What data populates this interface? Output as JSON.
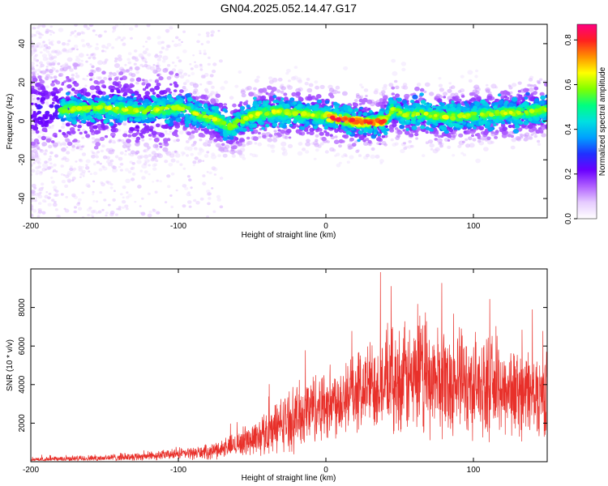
{
  "title": "GN04.2025.052.14.47.G17",
  "colors": {
    "snr_line": "#e8302a",
    "colormap": [
      "#ffffff",
      "#e6ccff",
      "#b060ff",
      "#6a00ff",
      "#2030ff",
      "#00a0ff",
      "#00e0e0",
      "#00ff80",
      "#80ff00",
      "#ffff00",
      "#ff9000",
      "#ff2020",
      "#ff0080"
    ]
  },
  "chart_data": [
    {
      "type": "heatmap",
      "title": "",
      "xlabel": "Height of straight line (km)",
      "ylabel": "Frequency (Hz)",
      "xlim": [
        -200,
        150
      ],
      "ylim": [
        -50,
        50
      ],
      "xticks": [
        -200,
        -100,
        0,
        100
      ],
      "yticks": [
        -40,
        -20,
        0,
        20,
        40
      ],
      "ridge": {
        "x": [
          -175,
          -150,
          -125,
          -100,
          -85,
          -75,
          -65,
          -50,
          -35,
          -20,
          -5,
          10,
          20,
          30,
          40,
          45,
          55,
          65,
          80,
          100,
          120,
          140,
          150
        ],
        "y": [
          6,
          7,
          5,
          7,
          3,
          1,
          -3,
          3,
          5,
          4,
          3,
          1,
          0,
          -1,
          0,
          6,
          3,
          4,
          2,
          3,
          4,
          5,
          6
        ]
      },
      "colorbar": {
        "label": "Normalized spectral amplitude",
        "range": [
          0,
          0.87
        ],
        "ticks": [
          "0.0",
          "0.2",
          "0.4",
          "0.6",
          "0.8"
        ]
      }
    },
    {
      "type": "line",
      "title": "",
      "xlabel": "Height of straight line (km)",
      "ylabel": "SNR (10 * v/v)",
      "xlim": [
        -200,
        150
      ],
      "ylim": [
        0,
        10000
      ],
      "xticks": [
        -200,
        -100,
        0,
        100
      ],
      "yticks": [
        2000,
        4000,
        6000,
        8000
      ],
      "series": [
        {
          "envelope": {
            "x": [
              -200,
              -150,
              -120,
              -100,
              -80,
              -65,
              -50,
              -40,
              -30,
              -20,
              -10,
              0,
              10,
              20,
              30,
              40,
              50,
              60,
              70,
              80,
              90,
              100,
              110,
              120,
              130,
              140,
              150
            ],
            "mean": [
              100,
              200,
              300,
              400,
              500,
              800,
              1200,
              1500,
              2000,
              2300,
              2800,
              3000,
              3300,
              3600,
              4000,
              4200,
              4200,
              4300,
              4300,
              4200,
              4100,
              4000,
              3900,
              3800,
              3600,
              3500,
              3500
            ],
            "amplitude": [
              120,
              200,
              250,
              300,
              400,
              600,
              900,
              1300,
              1500,
              1800,
              2000,
              2000,
              2100,
              2200,
              2500,
              2700,
              3000,
              3200,
              3100,
              3000,
              2900,
              2800,
              2700,
              2600,
              2500,
              2400,
              2300
            ]
          }
        }
      ]
    }
  ]
}
